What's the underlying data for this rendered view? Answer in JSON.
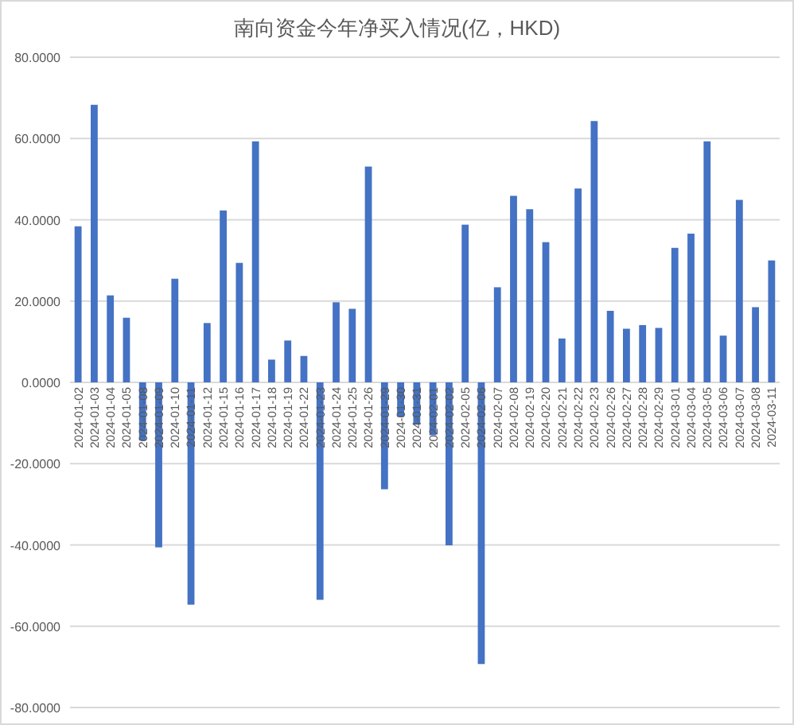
{
  "chart_data": {
    "type": "bar",
    "title": "南向资金今年净买入情况(亿，HKD)",
    "categories": [
      "2024-01-02",
      "2024-01-03",
      "2024-01-04",
      "2024-01-05",
      "2024-01-08",
      "2024-01-09",
      "2024-01-10",
      "2024-01-11",
      "2024-01-12",
      "2024-01-15",
      "2024-01-16",
      "2024-01-17",
      "2024-01-18",
      "2024-01-19",
      "2024-01-22",
      "2024-01-23",
      "2024-01-24",
      "2024-01-25",
      "2024-01-26",
      "2024-01-29",
      "2024-01-30",
      "2024-01-31",
      "2024-02-01",
      "2024-02-02",
      "2024-02-05",
      "2024-02-06",
      "2024-02-07",
      "2024-02-08",
      "2024-02-19",
      "2024-02-20",
      "2024-02-21",
      "2024-02-22",
      "2024-02-23",
      "2024-02-26",
      "2024-02-27",
      "2024-02-28",
      "2024-02-29",
      "2024-03-01",
      "2024-03-04",
      "2024-03-05",
      "2024-03-06",
      "2024-03-07",
      "2024-03-08",
      "2024-03-11"
    ],
    "values": [
      38.4,
      68.3,
      21.4,
      15.9,
      -14.3,
      -40.6,
      25.5,
      -54.7,
      14.6,
      42.3,
      29.4,
      59.3,
      5.6,
      10.3,
      6.5,
      -53.5,
      19.7,
      18.1,
      53.1,
      -26.3,
      -8.5,
      -10.4,
      -13.0,
      -40.1,
      38.8,
      -69.3,
      23.4,
      45.9,
      42.6,
      34.5,
      10.8,
      47.7,
      64.3,
      17.6,
      13.2,
      14.1,
      13.4,
      33.1,
      36.6,
      59.3,
      11.5,
      44.9,
      18.5,
      30.0
    ],
    "color": "#4472c4",
    "ylim": [
      -80,
      80
    ],
    "yticks": [
      {
        "value": -80,
        "label": "-80.0000"
      },
      {
        "value": -60,
        "label": "-60.0000"
      },
      {
        "value": -40,
        "label": "-40.0000"
      },
      {
        "value": -20,
        "label": "-20.0000"
      },
      {
        "value": 0,
        "label": "0.0000"
      },
      {
        "value": 20,
        "label": "20.0000"
      },
      {
        "value": 40,
        "label": "40.0000"
      },
      {
        "value": 60,
        "label": "60.0000"
      },
      {
        "value": 80,
        "label": "80.0000"
      }
    ],
    "grid": "y"
  }
}
